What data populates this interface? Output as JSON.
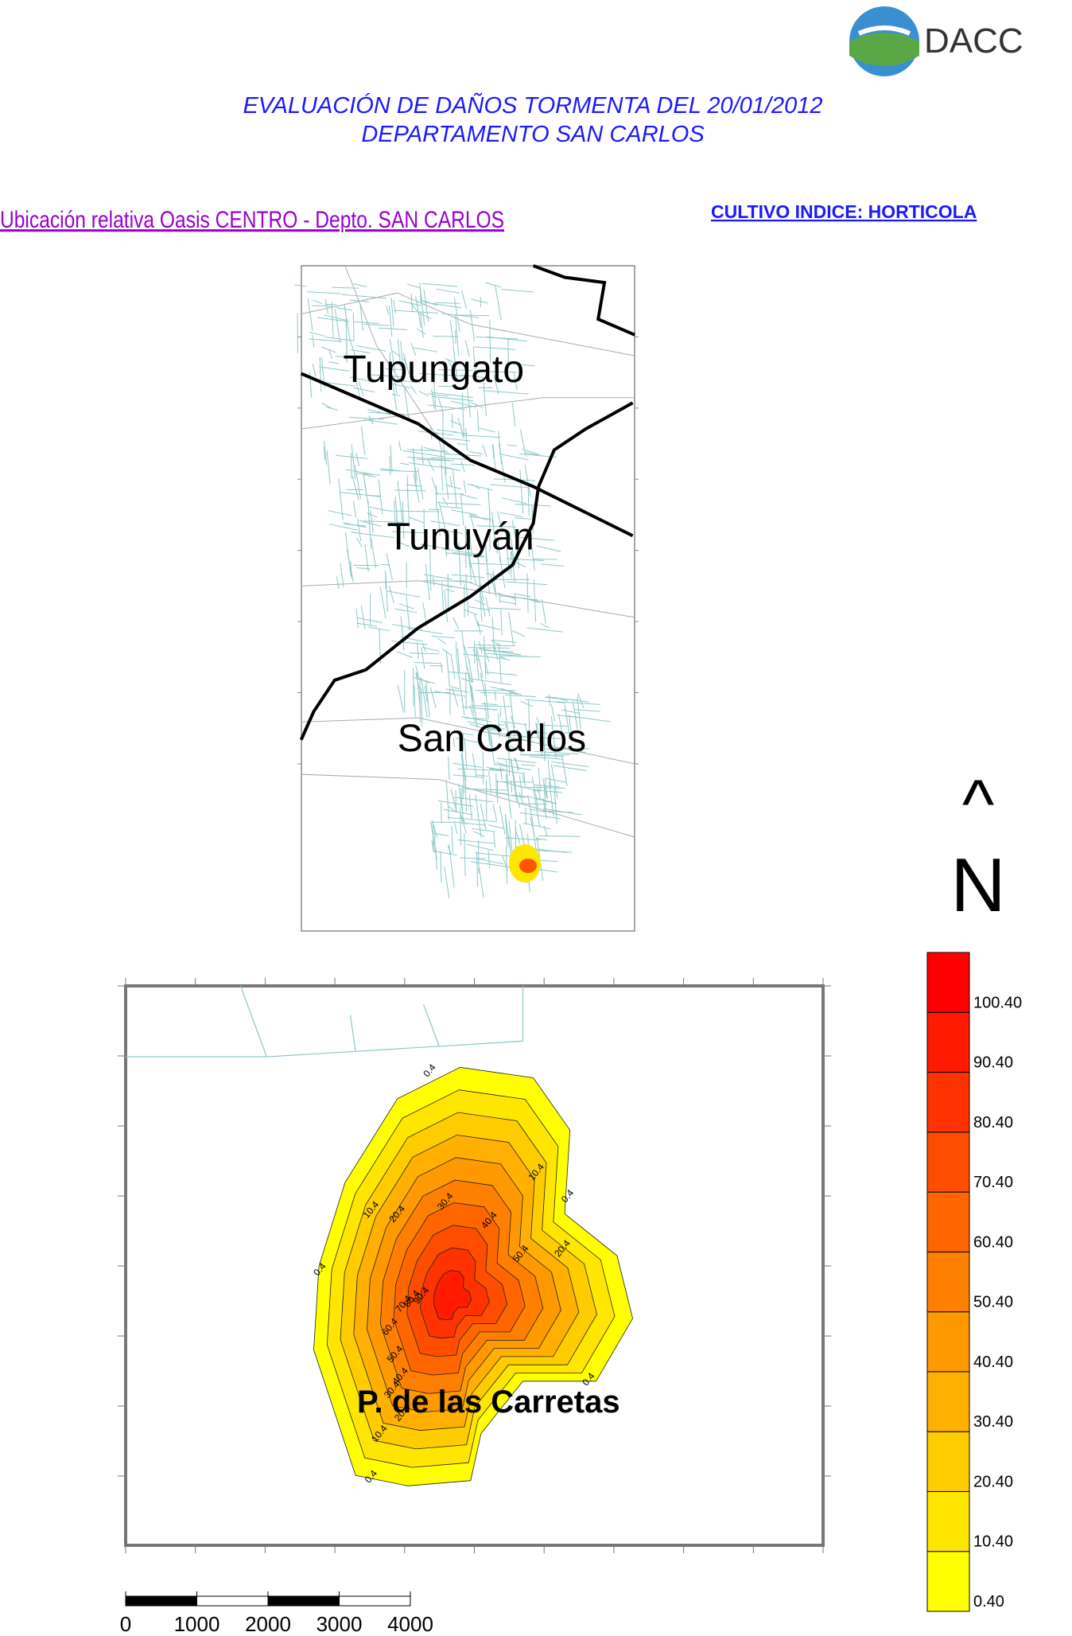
{
  "logo": {
    "text": "DACC"
  },
  "header": {
    "title_lines": [
      "EVALUACIÓN DE DAÑOS TORMENTA DEL 20/01/2012",
      "DEPARTAMENTO SAN CARLOS"
    ]
  },
  "location_label": "Ubicación relativa Oasis CENTRO - Depto. SAN CARLOS",
  "crop_label": "CULTIVO INDICE: HORTICOLA",
  "overview_map": {
    "places": [
      "Tupungato",
      "Tunuyán",
      "San Carlos"
    ]
  },
  "detail_map": {
    "place": "P. de las Carretas",
    "contour_levels": [
      0.4,
      10.4,
      20.4,
      30.4,
      40.4,
      50.4,
      60.4,
      70.4,
      80.4,
      90.4
    ]
  },
  "legend": {
    "range": [
      0.4,
      110.4
    ],
    "levels": [
      {
        "value": 0.4,
        "label": "0.40"
      },
      {
        "value": 10.4,
        "label": "10.40"
      },
      {
        "value": 20.4,
        "label": "20.40"
      },
      {
        "value": 30.4,
        "label": "30.40"
      },
      {
        "value": 40.4,
        "label": "40.40"
      },
      {
        "value": 50.4,
        "label": "50.40"
      },
      {
        "value": 60.4,
        "label": "60.40"
      },
      {
        "value": 70.4,
        "label": "70.40"
      },
      {
        "value": 80.4,
        "label": "80.40"
      },
      {
        "value": 90.4,
        "label": "90.40"
      },
      {
        "value": 100.4,
        "label": "100.40"
      }
    ],
    "colors": [
      "#ffff00",
      "#ffe600",
      "#ffcc00",
      "#ffb000",
      "#ff9900",
      "#ff8000",
      "#ff6600",
      "#ff4d00",
      "#ff3300",
      "#ff1a00",
      "#ff0000"
    ]
  },
  "north": {
    "arrow": "^",
    "letter": "N"
  },
  "scale_bar": {
    "range": [
      0,
      4000
    ],
    "ticks": [
      0,
      1000,
      2000,
      3000,
      4000
    ]
  }
}
